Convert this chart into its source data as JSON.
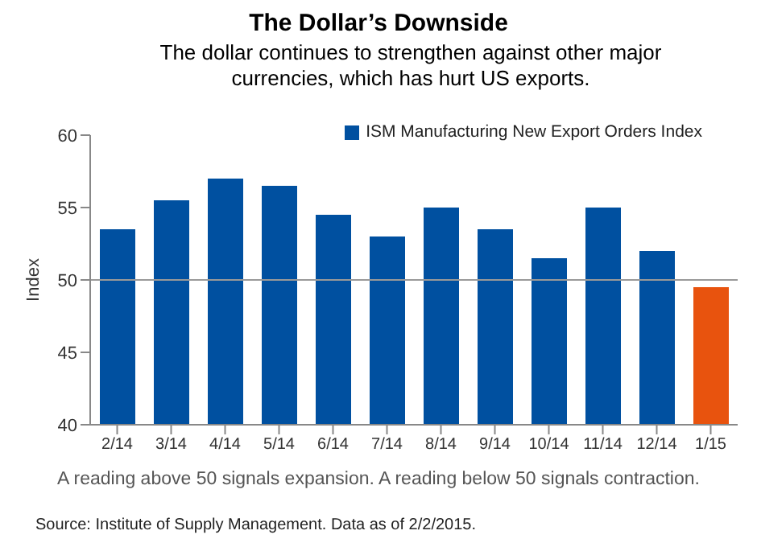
{
  "chart_data": {
    "type": "bar",
    "title": "The Dollar’s Downside",
    "subtitle": "The dollar continues to strengthen against other major currencies, which has hurt US exports.",
    "ylabel": "Index",
    "categories": [
      "2/14",
      "3/14",
      "4/14",
      "5/14",
      "6/14",
      "7/14",
      "8/14",
      "9/14",
      "10/14",
      "11/14",
      "12/14",
      "1/15"
    ],
    "series": [
      {
        "name": "ISM Manufacturing New Export Orders Index",
        "color": "#0050a0",
        "colors": [
          "#0050a0",
          "#0050a0",
          "#0050a0",
          "#0050a0",
          "#0050a0",
          "#0050a0",
          "#0050a0",
          "#0050a0",
          "#0050a0",
          "#0050a0",
          "#0050a0",
          "#e8530e"
        ],
        "values": [
          53.5,
          55.5,
          57,
          56.5,
          54.5,
          53,
          55,
          53.5,
          51.5,
          55,
          52,
          49.5
        ]
      }
    ],
    "ylim": [
      40,
      60
    ],
    "yticks": [
      40,
      45,
      50,
      55,
      60
    ],
    "grid": false,
    "legend": "top right",
    "ref_lines": [
      {
        "axis": "y",
        "value": 50,
        "color": "#999999"
      }
    ],
    "annotations": [
      "A reading above 50 signals expansion. A reading below 50 signals contraction.",
      "Source: Institute of Supply Management. Data as of 2/2/2015."
    ]
  }
}
